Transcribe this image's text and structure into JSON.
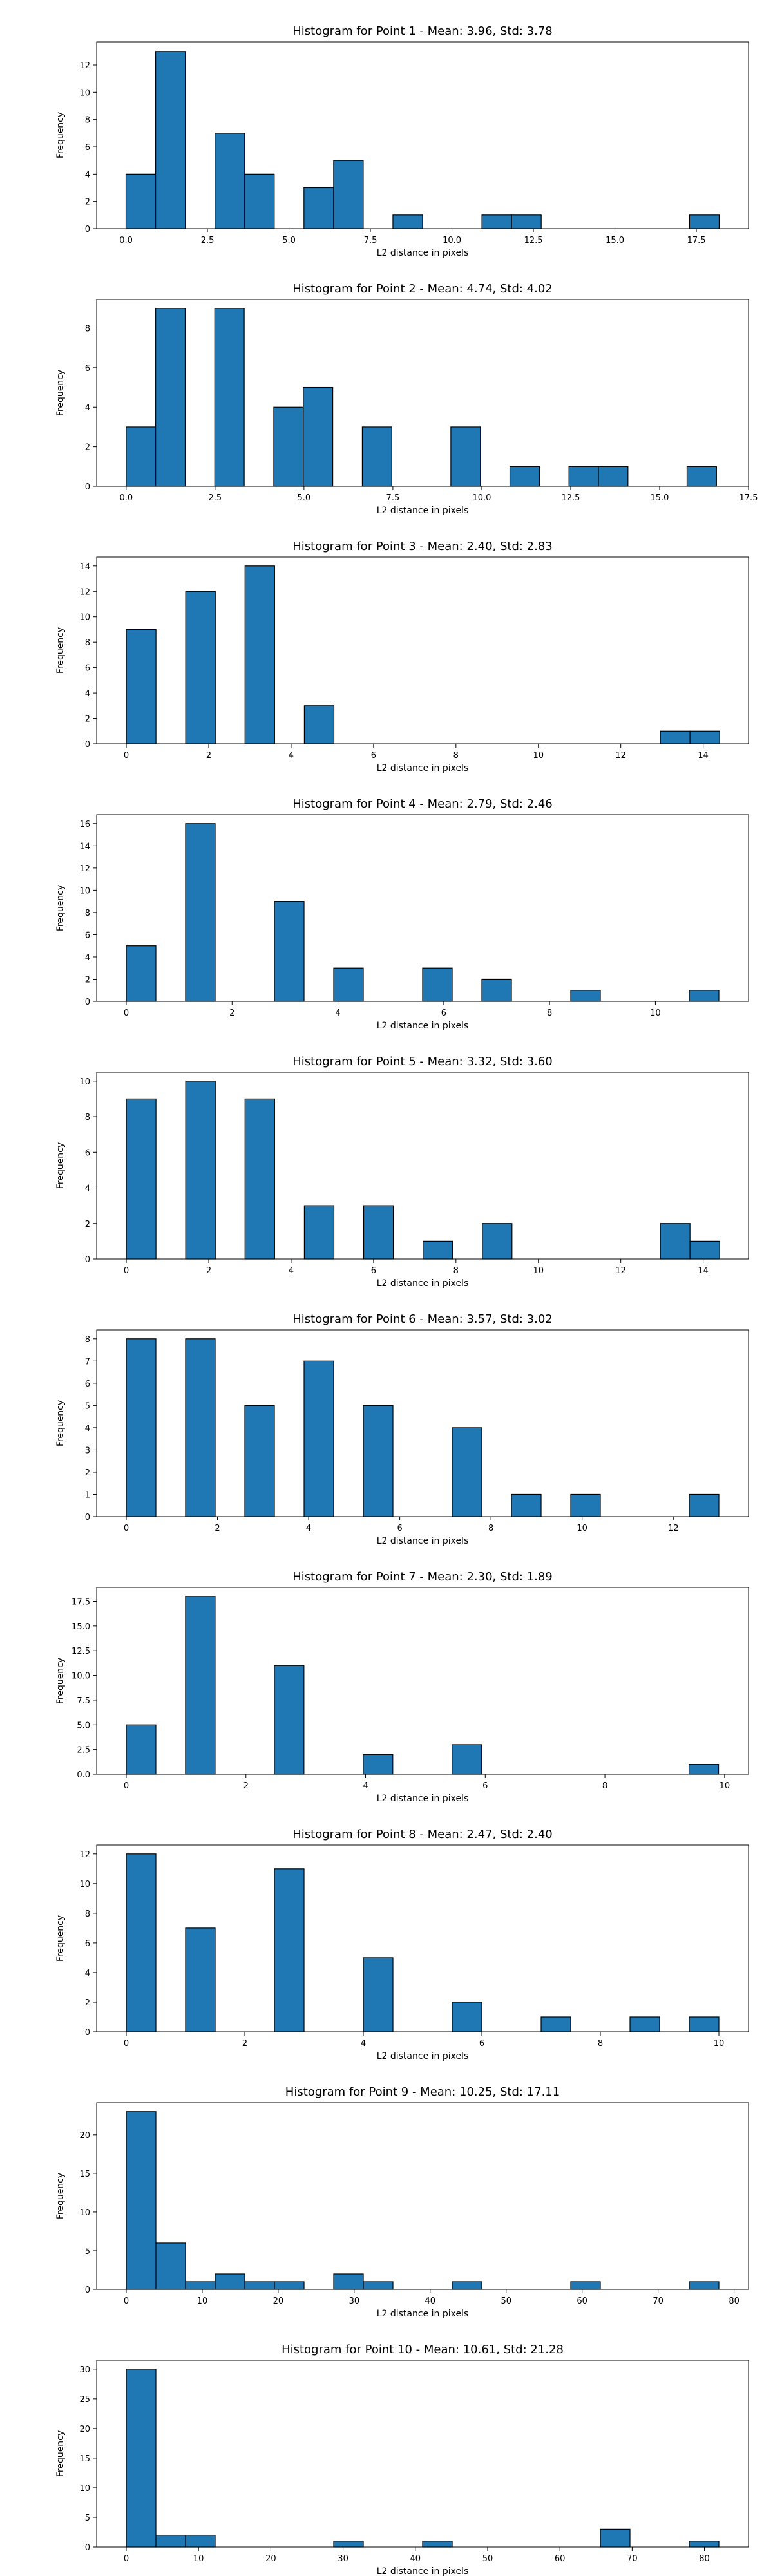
{
  "chart_data": [
    {
      "type": "bar",
      "title": "Histogram for Point 1 - Mean: 3.96, Std: 3.78",
      "xlabel": "L2 distance in pixels",
      "ylabel": "Frequency",
      "bin_min": 0,
      "bin_width": 0.91,
      "values": [
        4,
        13,
        0,
        7,
        4,
        0,
        3,
        5,
        0,
        1,
        0,
        0,
        1,
        1,
        0,
        0,
        0,
        0,
        0,
        1
      ],
      "xlim": [
        -0.9,
        19.1
      ],
      "ylim": [
        0,
        13.7
      ],
      "xticks": [
        0.0,
        2.5,
        5.0,
        7.5,
        10.0,
        12.5,
        15.0,
        17.5
      ],
      "xtick_labels": [
        "0.0",
        "2.5",
        "5.0",
        "7.5",
        "10.0",
        "12.5",
        "15.0",
        "17.5"
      ],
      "yticks": [
        0,
        2,
        4,
        6,
        8,
        10,
        12
      ],
      "ytick_labels": [
        "0",
        "2",
        "4",
        "6",
        "8",
        "10",
        "12"
      ],
      "grid": false
    },
    {
      "type": "bar",
      "title": "Histogram for Point 2 - Mean: 4.74, Std: 4.02",
      "xlabel": "L2 distance in pixels",
      "ylabel": "Frequency",
      "bin_min": 0,
      "bin_width": 0.83,
      "values": [
        3,
        9,
        0,
        9,
        0,
        4,
        5,
        0,
        3,
        0,
        0,
        3,
        0,
        1,
        0,
        1,
        1,
        0,
        0,
        1
      ],
      "xlim": [
        -0.83,
        17.5
      ],
      "ylim": [
        0,
        9.45
      ],
      "xticks": [
        0.0,
        2.5,
        5.0,
        7.5,
        10.0,
        12.5,
        15.0,
        17.5
      ],
      "xtick_labels": [
        "0.0",
        "2.5",
        "5.0",
        "7.5",
        "10.0",
        "12.5",
        "15.0",
        "17.5"
      ],
      "yticks": [
        0,
        2,
        4,
        6,
        8
      ],
      "ytick_labels": [
        "0",
        "2",
        "4",
        "6",
        "8"
      ],
      "grid": false
    },
    {
      "type": "bar",
      "title": "Histogram for Point 3 - Mean: 2.40, Std: 2.83",
      "xlabel": "L2 distance in pixels",
      "ylabel": "Frequency",
      "bin_min": 0,
      "bin_width": 0.72,
      "values": [
        9,
        0,
        12,
        0,
        14,
        0,
        3,
        0,
        0,
        0,
        0,
        0,
        0,
        0,
        0,
        0,
        0,
        0,
        1,
        1
      ],
      "xlim": [
        -0.72,
        15.1
      ],
      "ylim": [
        0,
        14.7
      ],
      "xticks": [
        0,
        2,
        4,
        6,
        8,
        10,
        12,
        14
      ],
      "xtick_labels": [
        "0",
        "2",
        "4",
        "6",
        "8",
        "10",
        "12",
        "14"
      ],
      "yticks": [
        0,
        2,
        4,
        6,
        8,
        10,
        12,
        14
      ],
      "ytick_labels": [
        "0",
        "2",
        "4",
        "6",
        "8",
        "10",
        "12",
        "14"
      ],
      "grid": false
    },
    {
      "type": "bar",
      "title": "Histogram for Point 4 - Mean: 2.79, Std: 2.46",
      "xlabel": "L2 distance in pixels",
      "ylabel": "Frequency",
      "bin_min": 0,
      "bin_width": 0.56,
      "values": [
        5,
        0,
        16,
        0,
        0,
        9,
        0,
        3,
        0,
        0,
        3,
        0,
        2,
        0,
        0,
        1,
        0,
        0,
        0,
        1
      ],
      "xlim": [
        -0.56,
        11.76
      ],
      "ylim": [
        0,
        16.8
      ],
      "xticks": [
        0,
        2,
        4,
        6,
        8,
        10
      ],
      "xtick_labels": [
        "0",
        "2",
        "4",
        "6",
        "8",
        "10"
      ],
      "yticks": [
        0,
        2,
        4,
        6,
        8,
        10,
        12,
        14,
        16
      ],
      "ytick_labels": [
        "0",
        "2",
        "4",
        "6",
        "8",
        "10",
        "12",
        "14",
        "16"
      ],
      "grid": false
    },
    {
      "type": "bar",
      "title": "Histogram for Point 5 - Mean: 3.32, Std: 3.60",
      "xlabel": "L2 distance in pixels",
      "ylabel": "Frequency",
      "bin_min": 0,
      "bin_width": 0.72,
      "values": [
        9,
        0,
        10,
        0,
        9,
        0,
        3,
        0,
        3,
        0,
        1,
        0,
        2,
        0,
        0,
        0,
        0,
        0,
        2,
        1
      ],
      "xlim": [
        -0.72,
        15.1
      ],
      "ylim": [
        0,
        10.5
      ],
      "xticks": [
        0,
        2,
        4,
        6,
        8,
        10,
        12,
        14
      ],
      "xtick_labels": [
        "0",
        "2",
        "4",
        "6",
        "8",
        "10",
        "12",
        "14"
      ],
      "yticks": [
        0,
        2,
        4,
        6,
        8,
        10
      ],
      "ytick_labels": [
        "0",
        "2",
        "4",
        "6",
        "8",
        "10"
      ],
      "grid": false
    },
    {
      "type": "bar",
      "title": "Histogram for Point 6 - Mean: 3.57, Std: 3.02",
      "xlabel": "L2 distance in pixels",
      "ylabel": "Frequency",
      "bin_min": 0,
      "bin_width": 0.65,
      "values": [
        8,
        0,
        8,
        0,
        5,
        0,
        7,
        0,
        5,
        0,
        0,
        4,
        0,
        1,
        0,
        1,
        0,
        0,
        0,
        1
      ],
      "xlim": [
        -0.65,
        13.65
      ],
      "ylim": [
        0,
        8.4
      ],
      "xticks": [
        0,
        2,
        4,
        6,
        8,
        10,
        12
      ],
      "xtick_labels": [
        "0",
        "2",
        "4",
        "6",
        "8",
        "10",
        "12"
      ],
      "yticks": [
        0,
        1,
        2,
        3,
        4,
        5,
        6,
        7,
        8
      ],
      "ytick_labels": [
        "0",
        "1",
        "2",
        "3",
        "4",
        "5",
        "6",
        "7",
        "8"
      ],
      "grid": false
    },
    {
      "type": "bar",
      "title": "Histogram for Point 7 - Mean: 2.30, Std: 1.89",
      "xlabel": "L2 distance in pixels",
      "ylabel": "Frequency",
      "bin_min": 0,
      "bin_width": 0.495,
      "values": [
        5,
        0,
        18,
        0,
        0,
        11,
        0,
        0,
        2,
        0,
        0,
        3,
        0,
        0,
        0,
        0,
        0,
        0,
        0,
        1
      ],
      "xlim": [
        -0.495,
        10.4
      ],
      "ylim": [
        0,
        18.9
      ],
      "xticks": [
        0,
        2,
        4,
        6,
        8,
        10
      ],
      "xtick_labels": [
        "0",
        "2",
        "4",
        "6",
        "8",
        "10"
      ],
      "yticks": [
        0,
        2.5,
        5.0,
        7.5,
        10.0,
        12.5,
        15.0,
        17.5
      ],
      "ytick_labels": [
        "0.0",
        "2.5",
        "5.0",
        "7.5",
        "10.0",
        "12.5",
        "15.0",
        "17.5"
      ],
      "grid": false
    },
    {
      "type": "bar",
      "title": "Histogram for Point 8 - Mean: 2.47, Std: 2.40",
      "xlabel": "L2 distance in pixels",
      "ylabel": "Frequency",
      "bin_min": 0,
      "bin_width": 0.5,
      "values": [
        12,
        0,
        7,
        0,
        0,
        11,
        0,
        0,
        5,
        0,
        0,
        2,
        0,
        0,
        1,
        0,
        0,
        1,
        0,
        1
      ],
      "xlim": [
        -0.5,
        10.5
      ],
      "ylim": [
        0,
        12.6
      ],
      "xticks": [
        0,
        2,
        4,
        6,
        8,
        10
      ],
      "xtick_labels": [
        "0",
        "2",
        "4",
        "6",
        "8",
        "10"
      ],
      "yticks": [
        0,
        2,
        4,
        6,
        8,
        10,
        12
      ],
      "ytick_labels": [
        "0",
        "2",
        "4",
        "6",
        "8",
        "10",
        "12"
      ],
      "grid": false
    },
    {
      "type": "bar",
      "title": "Histogram for Point 9 - Mean: 10.25, Std: 17.11",
      "xlabel": "L2 distance in pixels",
      "ylabel": "Frequency",
      "bin_min": 0,
      "bin_width": 3.9,
      "values": [
        23,
        6,
        1,
        2,
        1,
        1,
        0,
        2,
        1,
        0,
        0,
        1,
        0,
        0,
        0,
        1,
        0,
        0,
        0,
        1
      ],
      "xlim": [
        -3.9,
        81.9
      ],
      "ylim": [
        0,
        24.15
      ],
      "xticks": [
        0,
        10,
        20,
        30,
        40,
        50,
        60,
        70,
        80
      ],
      "xtick_labels": [
        "0",
        "10",
        "20",
        "30",
        "40",
        "50",
        "60",
        "70",
        "80"
      ],
      "yticks": [
        0,
        5,
        10,
        15,
        20
      ],
      "ytick_labels": [
        "0",
        "5",
        "10",
        "15",
        "20"
      ],
      "grid": false
    },
    {
      "type": "bar",
      "title": "Histogram for Point 10 - Mean: 10.61, Std: 21.28",
      "xlabel": "L2 distance in pixels",
      "ylabel": "Frequency",
      "bin_min": 0,
      "bin_width": 4.1,
      "values": [
        30,
        2,
        2,
        0,
        0,
        0,
        0,
        1,
        0,
        0,
        1,
        0,
        0,
        0,
        0,
        0,
        3,
        0,
        0,
        1
      ],
      "xlim": [
        -4.1,
        86.1
      ],
      "ylim": [
        0,
        31.5
      ],
      "xticks": [
        0,
        10,
        20,
        30,
        40,
        50,
        60,
        70,
        80
      ],
      "xtick_labels": [
        "0",
        "10",
        "20",
        "30",
        "40",
        "50",
        "60",
        "70",
        "80"
      ],
      "yticks": [
        0,
        5,
        10,
        15,
        20,
        25,
        30
      ],
      "ytick_labels": [
        "0",
        "5",
        "10",
        "15",
        "20",
        "25",
        "30"
      ],
      "grid": false
    }
  ],
  "colors": {
    "bar_fill": "#1f77b4",
    "bar_edge": "#000000"
  }
}
